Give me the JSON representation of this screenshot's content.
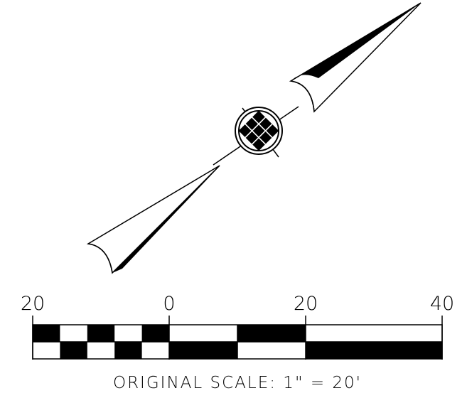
{
  "north_arrow": {
    "ink_color": "#000000",
    "background": "#ffffff"
  },
  "scale_bar": {
    "tick_labels": [
      "20",
      "0",
      "20",
      "40"
    ],
    "caption": "ORIGINAL SCALE: 1\"  =   20'",
    "ink_color": "#000000"
  }
}
